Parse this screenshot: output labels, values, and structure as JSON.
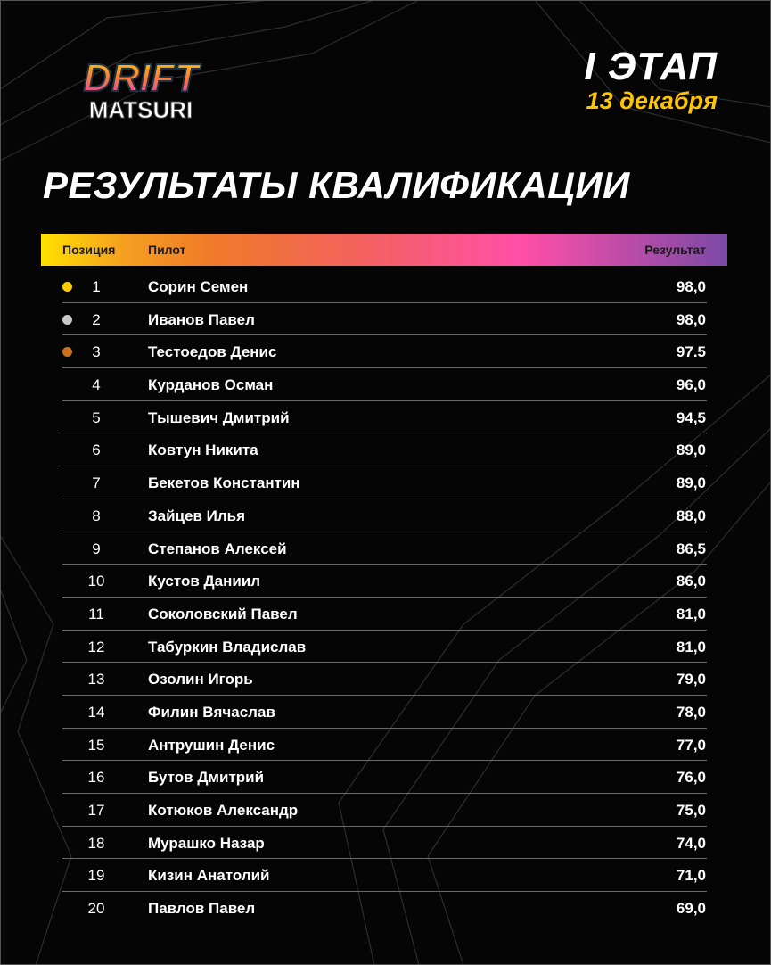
{
  "logo": {
    "line1": "DRIFT",
    "line2": "MATSURI"
  },
  "stage": {
    "title": "I ЭТАП",
    "date": "13 декабря"
  },
  "title": "РЕЗУЛЬТАТЫ КВАЛИФИКАЦИИ",
  "table": {
    "headers": {
      "position": "Позиция",
      "pilot": "Пилот",
      "result": "Результат"
    },
    "medal_colors": [
      "#ffcc00",
      "#c8c8c8",
      "#c8731a"
    ],
    "rows": [
      {
        "pos": "1",
        "name": "Сорин Семен",
        "result": "98,0"
      },
      {
        "pos": "2",
        "name": "Иванов Павел",
        "result": "98,0"
      },
      {
        "pos": "3",
        "name": "Тестоедов Денис",
        "result": "97.5"
      },
      {
        "pos": "4",
        "name": "Курданов Осман",
        "result": "96,0"
      },
      {
        "pos": "5",
        "name": "Тышевич Дмитрий",
        "result": "94,5"
      },
      {
        "pos": "6",
        "name": "Ковтун Никита",
        "result": "89,0"
      },
      {
        "pos": "7",
        "name": "Бекетов Константин",
        "result": "89,0"
      },
      {
        "pos": "8",
        "name": "Зайцев Илья",
        "result": "88,0"
      },
      {
        "pos": "9",
        "name": "Степанов Алексей",
        "result": "86,5"
      },
      {
        "pos": "10",
        "name": "Кустов Даниил",
        "result": "86,0"
      },
      {
        "pos": "11",
        "name": "Соколовский Павел",
        "result": "81,0"
      },
      {
        "pos": "12",
        "name": "Табуркин Владислав",
        "result": "81,0"
      },
      {
        "pos": "13",
        "name": "Озолин Игорь",
        "result": "79,0"
      },
      {
        "pos": "14",
        "name": "Филин Вячаслав",
        "result": "78,0"
      },
      {
        "pos": "15",
        "name": "Антрушин Денис",
        "result": "77,0"
      },
      {
        "pos": "16",
        "name": "Бутов Дмитрий",
        "result": "76,0"
      },
      {
        "pos": "17",
        "name": "Котюков Александр",
        "result": "75,0"
      },
      {
        "pos": "18",
        "name": "Мурашко Назар",
        "result": "74,0"
      },
      {
        "pos": "19",
        "name": "Кизин Анатолий",
        "result": "71,0"
      },
      {
        "pos": "20",
        "name": "Павлов Павел",
        "result": "69,0"
      }
    ]
  }
}
